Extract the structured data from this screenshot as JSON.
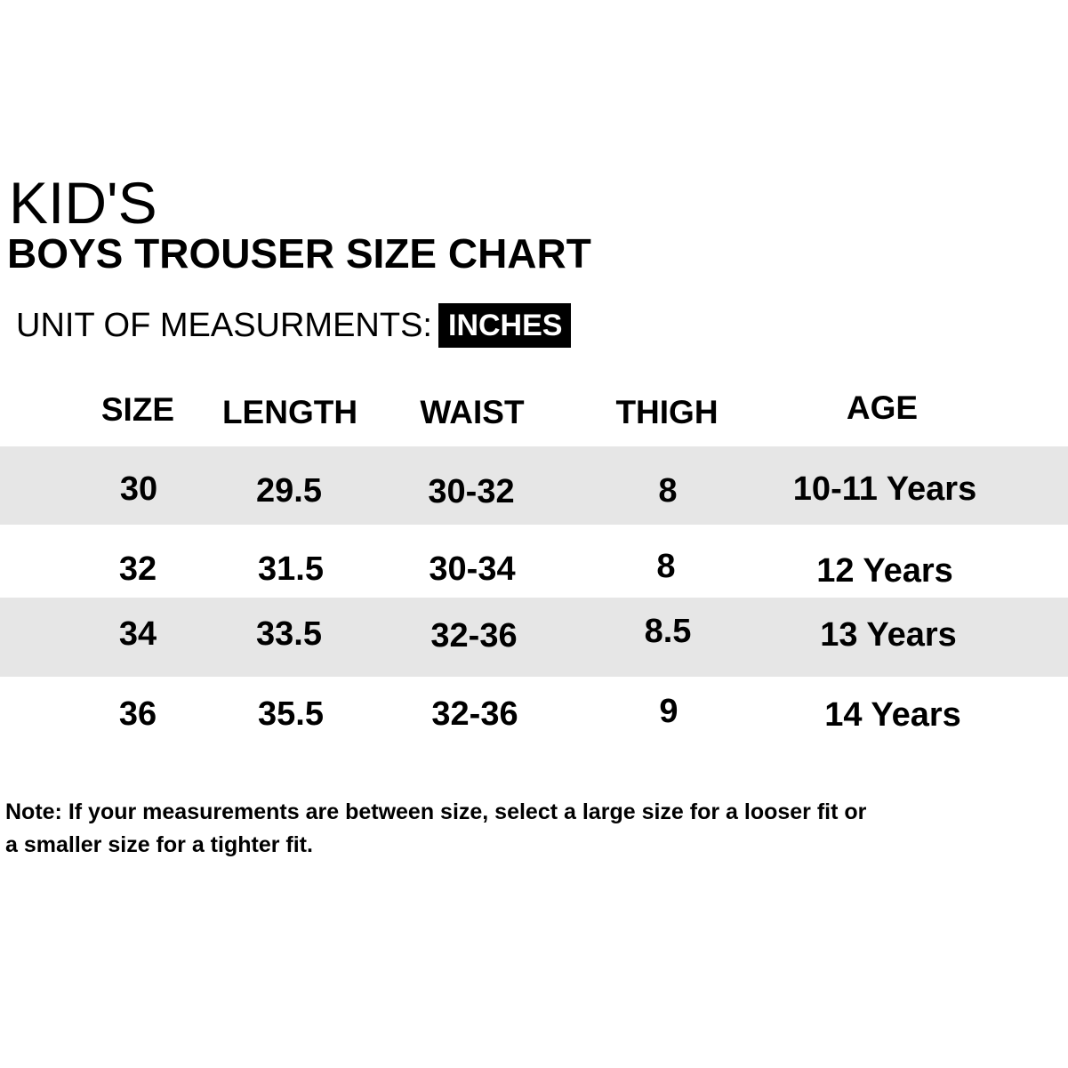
{
  "title": {
    "line1": "KID'S",
    "line2": "BOYS TROUSER SIZE CHART"
  },
  "unit": {
    "label": "UNIT OF MEASURMENTS:",
    "value": "INCHES"
  },
  "table": {
    "headers": [
      "SIZE",
      "LENGTH",
      "WAIST",
      "THIGH",
      "AGE"
    ],
    "rows": [
      [
        "30",
        "29.5",
        "30-32",
        "8",
        "10-11 Years"
      ],
      [
        "32",
        "31.5",
        "30-34",
        "8",
        "12 Years"
      ],
      [
        "34",
        "33.5",
        "32-36",
        "8.5",
        "13 Years"
      ],
      [
        "36",
        "35.5",
        "32-36",
        "9",
        "14 Years"
      ]
    ]
  },
  "note": {
    "line1": "Note: If your measurements are between size, select a large size for a looser fit or",
    "line2": "a smaller size for a tighter fit."
  },
  "colors": {
    "shaded_row": "#e6e6e6",
    "badge_background": "#000000",
    "badge_text": "#ffffff"
  }
}
